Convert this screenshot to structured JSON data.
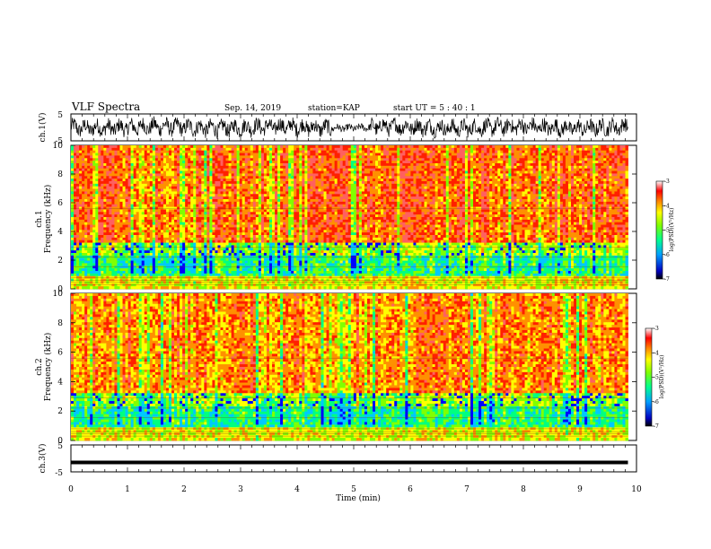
{
  "header": {
    "title": "VLF Spectra",
    "date": "Sep. 14, 2019",
    "station": "station=KAP",
    "start": "start  UT  =   5  : 40 : 1"
  },
  "chart_data": [
    {
      "type": "line",
      "name": "ch.1 waveform",
      "ylabel": "ch.1(V)",
      "ylim": [
        -5,
        5
      ],
      "yticks": [
        "5",
        "-5"
      ],
      "xlim": [
        0,
        10
      ]
    },
    {
      "type": "heatmap",
      "name": "ch.1 spectrogram",
      "ylabel": "Frequency  (kHz)",
      "channel_label": "ch.1",
      "ylim": [
        0,
        10
      ],
      "yticks": [
        "0",
        "2",
        "4",
        "6",
        "8",
        "10"
      ],
      "xlim": [
        0,
        9.85
      ],
      "colorbar": {
        "label": "log(PSD)(V²/Hz)",
        "range": [
          -7,
          -3
        ],
        "ticks": [
          "-3",
          "-4",
          "-5",
          "-6",
          "-7"
        ]
      }
    },
    {
      "type": "heatmap",
      "name": "ch.2 spectrogram",
      "ylabel": "Frequency  (kHz)",
      "channel_label": "ch.2",
      "ylim": [
        0,
        10
      ],
      "yticks": [
        "0",
        "2",
        "4",
        "6",
        "8",
        "10"
      ],
      "xlim": [
        0,
        9.85
      ],
      "colorbar": {
        "label": "log(PSD)(V²/Hz)",
        "range": [
          -7,
          -3
        ],
        "ticks": [
          "-3",
          "-4",
          "-5",
          "-6",
          "-7"
        ]
      }
    },
    {
      "type": "line",
      "name": "ch.3 waveform",
      "ylabel": "ch.3(V)",
      "ylim": [
        -5,
        5
      ],
      "yticks": [
        "5",
        "-5"
      ],
      "xlim": [
        0,
        10
      ],
      "level": -1.5
    }
  ],
  "xaxis": {
    "label": "Time  (min)",
    "ticks": [
      "0",
      "1",
      "2",
      "3",
      "4",
      "5",
      "6",
      "7",
      "8",
      "9",
      "10"
    ]
  },
  "colors": {
    "colormap": [
      "#000080",
      "#0000ff",
      "#00c8ff",
      "#00ff80",
      "#80ff00",
      "#ffff00",
      "#ff8000",
      "#ff0000",
      "#ffb0b0",
      "#ffffff"
    ],
    "trace": "#000000"
  }
}
